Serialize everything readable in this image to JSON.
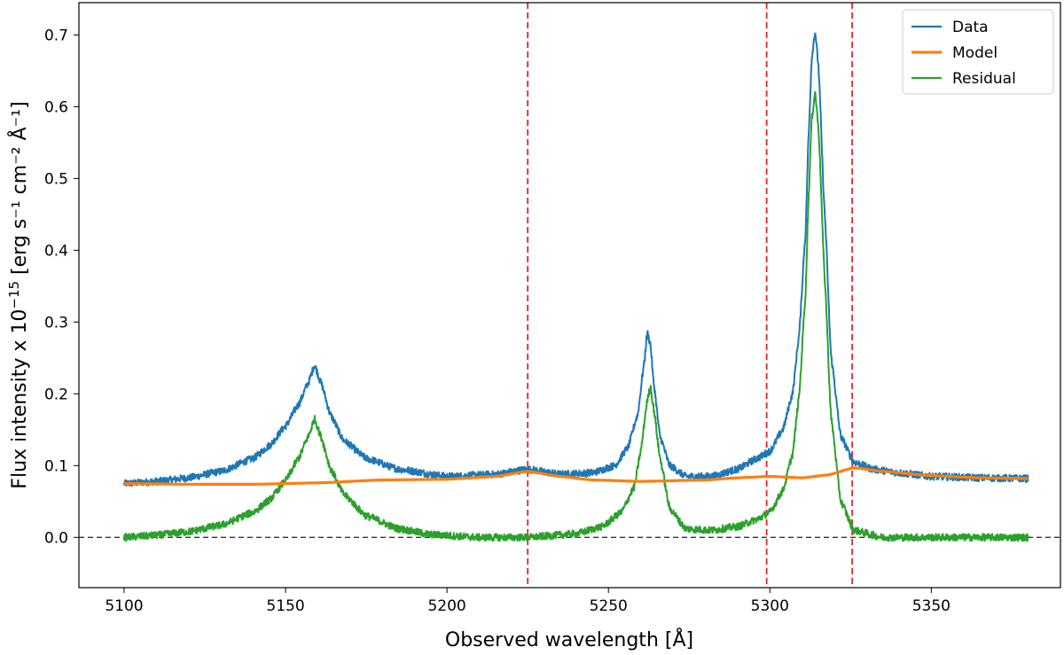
{
  "chart_data": {
    "type": "line",
    "title": "",
    "xlabel": "Observed wavelength [Å]",
    "ylabel": "Flux intensity x 10",
    "ylabel_exp": "−15",
    "ylabel_units": "erg s⁻¹ cm⁻² Å⁻¹",
    "xlim": [
      5086,
      5390
    ],
    "ylim": [
      -0.07,
      0.745
    ],
    "xticks": [
      5100,
      5150,
      5200,
      5250,
      5300,
      5350
    ],
    "yticks": [
      0.0,
      0.1,
      0.2,
      0.3,
      0.4,
      0.5,
      0.6,
      0.7
    ],
    "xtick_labels": [
      "5100",
      "5150",
      "5200",
      "5250",
      "5300",
      "5350"
    ],
    "ytick_labels": [
      "0.0",
      "0.1",
      "0.2",
      "0.3",
      "0.4",
      "0.5",
      "0.6",
      "0.7"
    ],
    "grid": false,
    "legend_position": "top-right",
    "x_range": [
      5100,
      5380
    ],
    "series": [
      {
        "name": "Data",
        "color": "#1f77b4",
        "x": [
          5100,
          5110,
          5120,
          5130,
          5140,
          5145,
          5150,
          5154,
          5157,
          5159,
          5161,
          5164,
          5168,
          5175,
          5185,
          5200,
          5215,
          5225,
          5235,
          5245,
          5252,
          5256,
          5259,
          5261,
          5262,
          5263,
          5264,
          5266,
          5269,
          5274,
          5282,
          5290,
          5296,
          5300,
          5304,
          5307,
          5309,
          5311,
          5312,
          5313,
          5314,
          5315,
          5317,
          5319,
          5322,
          5326,
          5332,
          5340,
          5350,
          5365,
          5380
        ],
        "values": [
          0.075,
          0.078,
          0.083,
          0.092,
          0.11,
          0.128,
          0.155,
          0.185,
          0.215,
          0.24,
          0.215,
          0.17,
          0.135,
          0.11,
          0.095,
          0.085,
          0.088,
          0.095,
          0.088,
          0.09,
          0.1,
          0.125,
          0.17,
          0.24,
          0.285,
          0.27,
          0.215,
          0.14,
          0.1,
          0.085,
          0.085,
          0.095,
          0.11,
          0.12,
          0.15,
          0.2,
          0.28,
          0.42,
          0.56,
          0.67,
          0.705,
          0.66,
          0.45,
          0.25,
          0.14,
          0.105,
          0.095,
          0.09,
          0.085,
          0.083,
          0.082
        ]
      },
      {
        "name": "Model",
        "color": "#ff7f0e",
        "x": [
          5100,
          5120,
          5140,
          5160,
          5180,
          5200,
          5215,
          5225,
          5235,
          5245,
          5260,
          5280,
          5290,
          5300,
          5310,
          5318,
          5326,
          5335,
          5350,
          5365,
          5380
        ],
        "values": [
          0.075,
          0.074,
          0.074,
          0.076,
          0.08,
          0.081,
          0.085,
          0.092,
          0.085,
          0.08,
          0.078,
          0.08,
          0.083,
          0.085,
          0.083,
          0.087,
          0.097,
          0.092,
          0.086,
          0.083,
          0.082
        ]
      },
      {
        "name": "Residual",
        "color": "#2ca02c",
        "x": [
          5100,
          5110,
          5120,
          5130,
          5140,
          5145,
          5150,
          5154,
          5157,
          5159,
          5161,
          5164,
          5168,
          5175,
          5185,
          5195,
          5210,
          5225,
          5240,
          5248,
          5254,
          5258,
          5260,
          5262,
          5263,
          5264,
          5266,
          5269,
          5274,
          5282,
          5290,
          5296,
          5300,
          5304,
          5307,
          5309,
          5311,
          5312,
          5313,
          5314,
          5315,
          5317,
          5319,
          5322,
          5326,
          5335,
          5350,
          5365,
          5380
        ],
        "values": [
          0.0,
          0.003,
          0.008,
          0.017,
          0.035,
          0.052,
          0.079,
          0.11,
          0.14,
          0.165,
          0.14,
          0.095,
          0.06,
          0.03,
          0.012,
          0.004,
          0.0,
          0.0,
          0.005,
          0.015,
          0.035,
          0.07,
          0.12,
          0.19,
          0.21,
          0.18,
          0.11,
          0.04,
          0.012,
          0.01,
          0.015,
          0.025,
          0.035,
          0.065,
          0.115,
          0.195,
          0.335,
          0.475,
          0.585,
          0.62,
          0.575,
          0.36,
          0.165,
          0.05,
          0.01,
          0.0,
          0.0,
          0.0,
          0.0
        ]
      }
    ],
    "annotations": {
      "hline": {
        "y": 0.0,
        "color": "#333333",
        "style": "dashed"
      },
      "vlines": [
        {
          "x": 5225,
          "color": "#e8262b",
          "style": "dashed"
        },
        {
          "x": 5299,
          "color": "#e8262b",
          "style": "dashed"
        },
        {
          "x": 5325.5,
          "color": "#e8262b",
          "style": "dashed"
        }
      ]
    }
  }
}
